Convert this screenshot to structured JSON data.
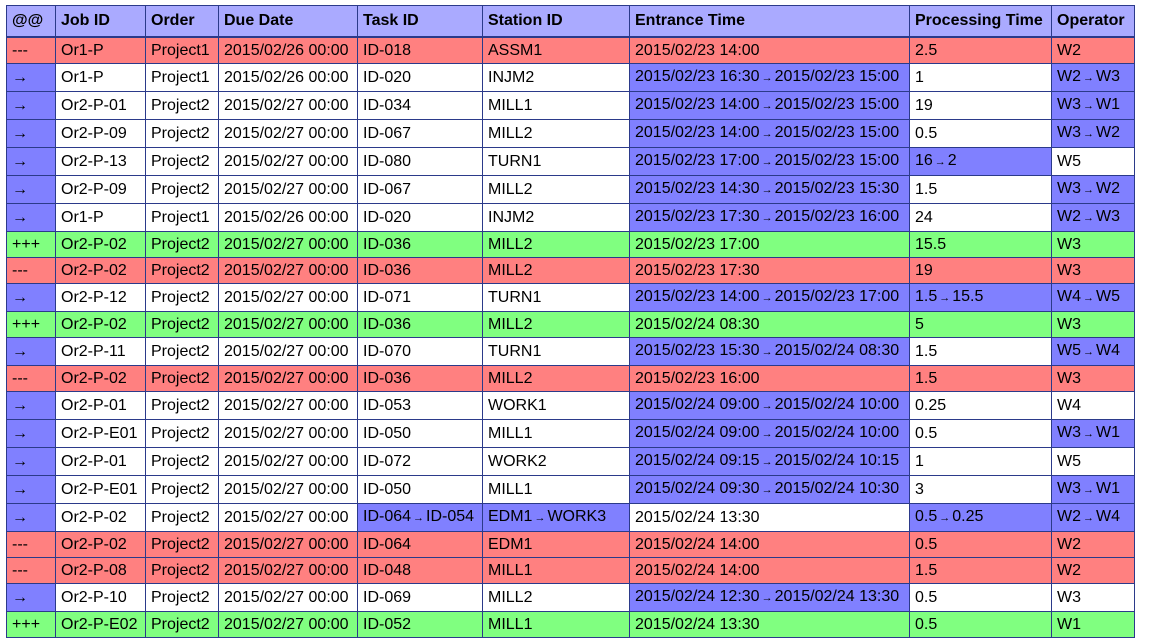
{
  "table": {
    "columns": [
      "@@",
      "Job ID",
      "Order",
      "Due Date",
      "Task ID",
      "Station ID",
      "Entrance Time",
      "Processing Time",
      "Operator"
    ],
    "colors": {
      "removed": "#ff8080",
      "added": "#80ff80",
      "changed": "#8080ff",
      "header": "#aaaaff"
    },
    "rows": [
      {
        "row_status": "removed",
        "cells": [
          {
            "v": "---"
          },
          {
            "v": "Or1-P"
          },
          {
            "v": "Project1"
          },
          {
            "v": "2015/02/26 00:00"
          },
          {
            "v": "ID-018"
          },
          {
            "v": "ASSM1"
          },
          {
            "v": "2015/02/23 14:00"
          },
          {
            "v": "2.5"
          },
          {
            "v": "W2"
          }
        ]
      },
      {
        "row_status": "modified",
        "cells": [
          {
            "v": "→"
          },
          {
            "v": "Or1-P"
          },
          {
            "v": "Project1"
          },
          {
            "v": "2015/02/26 00:00"
          },
          {
            "v": "ID-020"
          },
          {
            "v": "INJM2"
          },
          {
            "from": "2015/02/23 16:30",
            "to": "2015/02/23 15:00"
          },
          {
            "v": "1"
          },
          {
            "from": "W2",
            "to": "W3"
          }
        ]
      },
      {
        "row_status": "modified",
        "cells": [
          {
            "v": "→"
          },
          {
            "v": "Or2-P-01"
          },
          {
            "v": "Project2"
          },
          {
            "v": "2015/02/27 00:00"
          },
          {
            "v": "ID-034"
          },
          {
            "v": "MILL1"
          },
          {
            "from": "2015/02/23 14:00",
            "to": "2015/02/23 15:00"
          },
          {
            "v": "19"
          },
          {
            "from": "W3",
            "to": "W1"
          }
        ]
      },
      {
        "row_status": "modified",
        "cells": [
          {
            "v": "→"
          },
          {
            "v": "Or2-P-09"
          },
          {
            "v": "Project2"
          },
          {
            "v": "2015/02/27 00:00"
          },
          {
            "v": "ID-067"
          },
          {
            "v": "MILL2"
          },
          {
            "from": "2015/02/23 14:00",
            "to": "2015/02/23 15:00"
          },
          {
            "v": "0.5"
          },
          {
            "from": "W3",
            "to": "W2"
          }
        ]
      },
      {
        "row_status": "modified",
        "cells": [
          {
            "v": "→"
          },
          {
            "v": "Or2-P-13"
          },
          {
            "v": "Project2"
          },
          {
            "v": "2015/02/27 00:00"
          },
          {
            "v": "ID-080"
          },
          {
            "v": "TURN1"
          },
          {
            "from": "2015/02/23 17:00",
            "to": "2015/02/23 15:00"
          },
          {
            "from": "16",
            "to": "2"
          },
          {
            "v": "W5"
          }
        ]
      },
      {
        "row_status": "modified",
        "cells": [
          {
            "v": "→"
          },
          {
            "v": "Or2-P-09"
          },
          {
            "v": "Project2"
          },
          {
            "v": "2015/02/27 00:00"
          },
          {
            "v": "ID-067"
          },
          {
            "v": "MILL2"
          },
          {
            "from": "2015/02/23 14:30",
            "to": "2015/02/23 15:30"
          },
          {
            "v": "1.5"
          },
          {
            "from": "W3",
            "to": "W2"
          }
        ]
      },
      {
        "row_status": "modified",
        "cells": [
          {
            "v": "→"
          },
          {
            "v": "Or1-P"
          },
          {
            "v": "Project1"
          },
          {
            "v": "2015/02/26 00:00"
          },
          {
            "v": "ID-020"
          },
          {
            "v": "INJM2"
          },
          {
            "from": "2015/02/23 17:30",
            "to": "2015/02/23 16:00"
          },
          {
            "v": "24"
          },
          {
            "from": "W2",
            "to": "W3"
          }
        ]
      },
      {
        "row_status": "added",
        "cells": [
          {
            "v": "+++"
          },
          {
            "v": "Or2-P-02"
          },
          {
            "v": "Project2"
          },
          {
            "v": "2015/02/27 00:00"
          },
          {
            "v": "ID-036"
          },
          {
            "v": "MILL2"
          },
          {
            "v": "2015/02/23 17:00"
          },
          {
            "v": "15.5"
          },
          {
            "v": "W3"
          }
        ]
      },
      {
        "row_status": "removed",
        "cells": [
          {
            "v": "---"
          },
          {
            "v": "Or2-P-02"
          },
          {
            "v": "Project2"
          },
          {
            "v": "2015/02/27 00:00"
          },
          {
            "v": "ID-036"
          },
          {
            "v": "MILL2"
          },
          {
            "v": "2015/02/23 17:30"
          },
          {
            "v": "19"
          },
          {
            "v": "W3"
          }
        ]
      },
      {
        "row_status": "modified",
        "cells": [
          {
            "v": "→"
          },
          {
            "v": "Or2-P-12"
          },
          {
            "v": "Project2"
          },
          {
            "v": "2015/02/27 00:00"
          },
          {
            "v": "ID-071"
          },
          {
            "v": "TURN1"
          },
          {
            "from": "2015/02/23 14:00",
            "to": "2015/02/23 17:00"
          },
          {
            "from": "1.5",
            "to": "15.5"
          },
          {
            "from": "W4",
            "to": "W5"
          }
        ]
      },
      {
        "row_status": "added",
        "cells": [
          {
            "v": "+++"
          },
          {
            "v": "Or2-P-02"
          },
          {
            "v": "Project2"
          },
          {
            "v": "2015/02/27 00:00"
          },
          {
            "v": "ID-036"
          },
          {
            "v": "MILL2"
          },
          {
            "v": "2015/02/24 08:30"
          },
          {
            "v": "5"
          },
          {
            "v": "W3"
          }
        ]
      },
      {
        "row_status": "modified",
        "cells": [
          {
            "v": "→"
          },
          {
            "v": "Or2-P-11"
          },
          {
            "v": "Project2"
          },
          {
            "v": "2015/02/27 00:00"
          },
          {
            "v": "ID-070"
          },
          {
            "v": "TURN1"
          },
          {
            "from": "2015/02/23 15:30",
            "to": "2015/02/24 08:30"
          },
          {
            "v": "1.5"
          },
          {
            "from": "W5",
            "to": "W4"
          }
        ]
      },
      {
        "row_status": "removed",
        "cells": [
          {
            "v": "---"
          },
          {
            "v": "Or2-P-02"
          },
          {
            "v": "Project2"
          },
          {
            "v": "2015/02/27 00:00"
          },
          {
            "v": "ID-036"
          },
          {
            "v": "MILL2"
          },
          {
            "v": "2015/02/23 16:00"
          },
          {
            "v": "1.5"
          },
          {
            "v": "W3"
          }
        ]
      },
      {
        "row_status": "modified",
        "cells": [
          {
            "v": "→"
          },
          {
            "v": "Or2-P-01"
          },
          {
            "v": "Project2"
          },
          {
            "v": "2015/02/27 00:00"
          },
          {
            "v": "ID-053"
          },
          {
            "v": "WORK1"
          },
          {
            "from": "2015/02/24 09:00",
            "to": "2015/02/24 10:00"
          },
          {
            "v": "0.25"
          },
          {
            "v": "W4"
          }
        ]
      },
      {
        "row_status": "modified",
        "cells": [
          {
            "v": "→"
          },
          {
            "v": "Or2-P-E01"
          },
          {
            "v": "Project2"
          },
          {
            "v": "2015/02/27 00:00"
          },
          {
            "v": "ID-050"
          },
          {
            "v": "MILL1"
          },
          {
            "from": "2015/02/24 09:00",
            "to": "2015/02/24 10:00"
          },
          {
            "v": "0.5"
          },
          {
            "from": "W3",
            "to": "W1"
          }
        ]
      },
      {
        "row_status": "modified",
        "cells": [
          {
            "v": "→"
          },
          {
            "v": "Or2-P-01"
          },
          {
            "v": "Project2"
          },
          {
            "v": "2015/02/27 00:00"
          },
          {
            "v": "ID-072"
          },
          {
            "v": "WORK2"
          },
          {
            "from": "2015/02/24 09:15",
            "to": "2015/02/24 10:15"
          },
          {
            "v": "1"
          },
          {
            "v": "W5"
          }
        ]
      },
      {
        "row_status": "modified",
        "cells": [
          {
            "v": "→"
          },
          {
            "v": "Or2-P-E01"
          },
          {
            "v": "Project2"
          },
          {
            "v": "2015/02/27 00:00"
          },
          {
            "v": "ID-050"
          },
          {
            "v": "MILL1"
          },
          {
            "from": "2015/02/24 09:30",
            "to": "2015/02/24 10:30"
          },
          {
            "v": "3"
          },
          {
            "from": "W3",
            "to": "W1"
          }
        ]
      },
      {
        "row_status": "modified",
        "cells": [
          {
            "v": "→"
          },
          {
            "v": "Or2-P-02"
          },
          {
            "v": "Project2"
          },
          {
            "v": "2015/02/27 00:00"
          },
          {
            "from": "ID-064",
            "to": "ID-054"
          },
          {
            "from": "EDM1",
            "to": "WORK3"
          },
          {
            "v": "2015/02/24 13:30"
          },
          {
            "from": "0.5",
            "to": "0.25"
          },
          {
            "from": "W2",
            "to": "W4"
          }
        ]
      },
      {
        "row_status": "removed",
        "cells": [
          {
            "v": "---"
          },
          {
            "v": "Or2-P-02"
          },
          {
            "v": "Project2"
          },
          {
            "v": "2015/02/27 00:00"
          },
          {
            "v": "ID-064"
          },
          {
            "v": "EDM1"
          },
          {
            "v": "2015/02/24 14:00"
          },
          {
            "v": "0.5"
          },
          {
            "v": "W2"
          }
        ]
      },
      {
        "row_status": "removed",
        "cells": [
          {
            "v": "---"
          },
          {
            "v": "Or2-P-08"
          },
          {
            "v": "Project2"
          },
          {
            "v": "2015/02/27 00:00"
          },
          {
            "v": "ID-048"
          },
          {
            "v": "MILL1"
          },
          {
            "v": "2015/02/24 14:00"
          },
          {
            "v": "1.5"
          },
          {
            "v": "W2"
          }
        ]
      },
      {
        "row_status": "modified",
        "cells": [
          {
            "v": "→"
          },
          {
            "v": "Or2-P-10"
          },
          {
            "v": "Project2"
          },
          {
            "v": "2015/02/27 00:00"
          },
          {
            "v": "ID-069"
          },
          {
            "v": "MILL2"
          },
          {
            "from": "2015/02/24 12:30",
            "to": "2015/02/24 13:30"
          },
          {
            "v": "0.5"
          },
          {
            "v": "W3"
          }
        ]
      },
      {
        "row_status": "added",
        "cells": [
          {
            "v": "+++"
          },
          {
            "v": "Or2-P-E02"
          },
          {
            "v": "Project2"
          },
          {
            "v": "2015/02/27 00:00"
          },
          {
            "v": "ID-052"
          },
          {
            "v": "MILL1"
          },
          {
            "v": "2015/02/24 13:30"
          },
          {
            "v": "0.5"
          },
          {
            "v": "W1"
          }
        ]
      }
    ]
  }
}
